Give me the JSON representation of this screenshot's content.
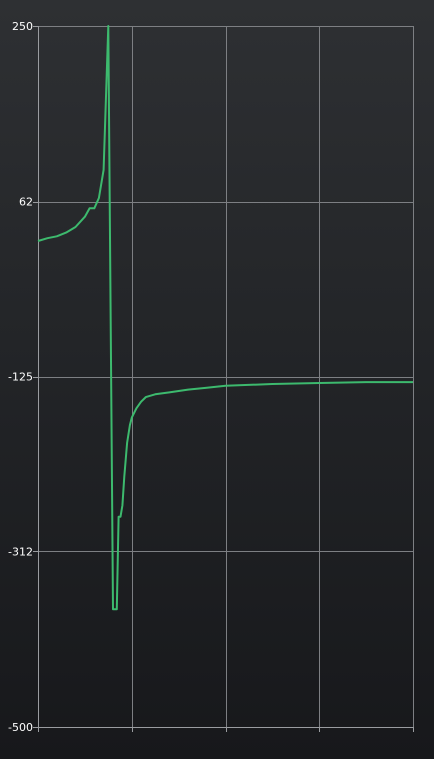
{
  "chart_data": {
    "type": "line",
    "title": "",
    "xlabel": "",
    "ylabel": "",
    "ylim": [
      -500,
      250
    ],
    "xlim": [
      0,
      4
    ],
    "yticks": [
      250,
      62,
      -125,
      -312,
      -500
    ],
    "ytick_labels": [
      "250",
      "62",
      "-125",
      "-312",
      "-500"
    ],
    "xticks": [
      0,
      1,
      2,
      3,
      4
    ],
    "xtick_labels": [
      "",
      "",
      "",
      "",
      ""
    ],
    "grid": true,
    "line_color": "#3dba6e",
    "grid_color": "#7d7f83",
    "series": [
      {
        "x": [
          0,
          0.1,
          0.2,
          0.3,
          0.4,
          0.5,
          0.55,
          0.6,
          0.65,
          0.7,
          0.75,
          0.8,
          0.84,
          0.86,
          0.88,
          0.9,
          0.92,
          0.95,
          0.98,
          1.0,
          1.05,
          1.1,
          1.15,
          1.25,
          1.4,
          1.6,
          1.8,
          2.0,
          2.5,
          3.0,
          3.5,
          4.0
        ],
        "y": [
          20,
          23,
          25,
          29,
          35,
          46,
          55,
          55,
          66,
          96,
          250,
          -374,
          -374,
          -275,
          -275,
          -263,
          -232,
          -196,
          -177,
          -169,
          -159,
          -152,
          -147,
          -144,
          -142,
          -139,
          -137,
          -135,
          -133,
          -132,
          -131,
          -131
        ]
      }
    ]
  }
}
